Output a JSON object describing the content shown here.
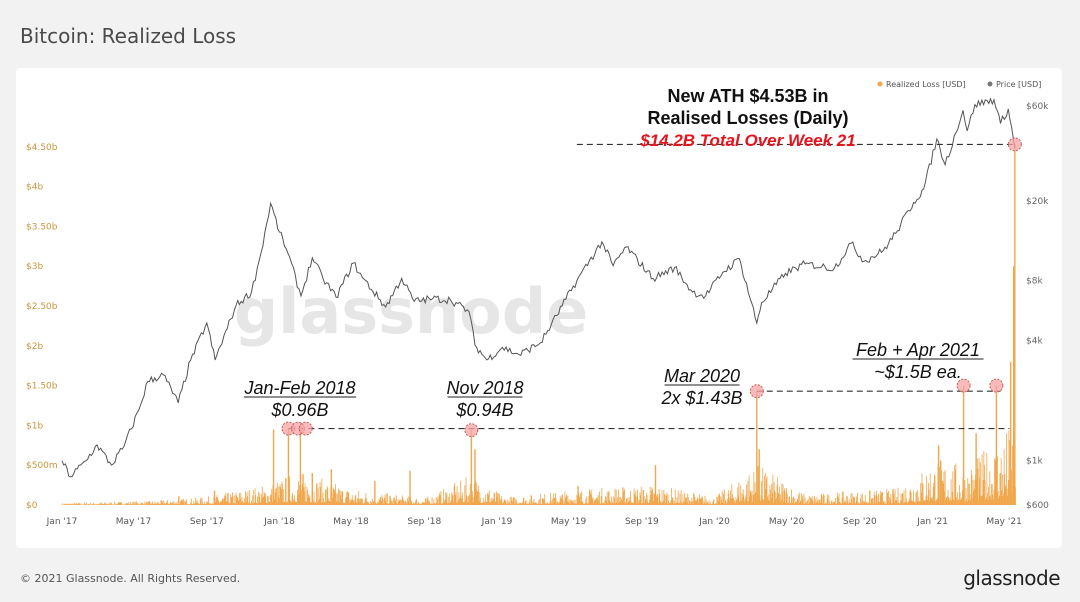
{
  "page": {
    "title": "Bitcoin: Realized Loss",
    "copyright": "© 2021 Glassnode. All Rights Reserved.",
    "brand": "glassnode",
    "watermark": "glassnode"
  },
  "colors": {
    "loss": "#f0a64a",
    "price": "#555555",
    "highlight": "#f5a3a3",
    "annotation_red": "#e8121c",
    "axis_text": "#c8963e",
    "axis_text_right": "#666666"
  },
  "chart_data": {
    "type": "bar",
    "title": "Bitcoin: Realized Loss",
    "legend": [
      {
        "name": "Realized Loss [USD]",
        "color": "#f0a64a"
      },
      {
        "name": "Price [USD]",
        "color": "#777777"
      }
    ],
    "legend_position": "top-right",
    "x_range": [
      "2017-01-01",
      "2021-05-31"
    ],
    "x_ticks": [
      "Jan '17",
      "May '17",
      "Sep '17",
      "Jan '18",
      "May '18",
      "Sep '18",
      "Jan '19",
      "May '19",
      "Sep '19",
      "Jan '20",
      "May '20",
      "Sep '20",
      "Jan '21",
      "May '21"
    ],
    "y_left": {
      "range": [
        0,
        5000000000
      ],
      "ticks": [
        0,
        500000000,
        1000000000,
        1500000000,
        2000000000,
        2500000000,
        3000000000,
        3500000000,
        4000000000,
        4500000000
      ],
      "tick_labels": [
        "$0",
        "$500m",
        "$1b",
        "$1.50b",
        "$2b",
        "$2.50b",
        "$3b",
        "$3.50b",
        "$4b",
        "$4.50b"
      ]
    },
    "y_right": {
      "scale": "log",
      "range": [
        600,
        60000
      ],
      "ticks": [
        600,
        1000,
        4000,
        8000,
        20000,
        60000
      ],
      "tick_labels": [
        "$600",
        "$1k",
        "$4k",
        "$8k",
        "$20k",
        "$60k"
      ]
    },
    "price": {
      "name": "Price [USD]",
      "points": [
        [
          "2017-01-01",
          1000
        ],
        [
          "2017-01-15",
          830
        ],
        [
          "2017-02-10",
          1000
        ],
        [
          "2017-03-01",
          1200
        ],
        [
          "2017-03-25",
          950
        ],
        [
          "2017-04-15",
          1180
        ],
        [
          "2017-05-10",
          1800
        ],
        [
          "2017-05-25",
          2500
        ],
        [
          "2017-06-20",
          2700
        ],
        [
          "2017-07-15",
          1950
        ],
        [
          "2017-08-05",
          3200
        ],
        [
          "2017-09-01",
          4900
        ],
        [
          "2017-09-15",
          3200
        ],
        [
          "2017-10-20",
          6000
        ],
        [
          "2017-11-15",
          7000
        ],
        [
          "2017-12-01",
          11000
        ],
        [
          "2017-12-17",
          19500
        ],
        [
          "2018-01-01",
          14000
        ],
        [
          "2018-01-15",
          11000
        ],
        [
          "2018-02-06",
          6700
        ],
        [
          "2018-02-25",
          10400
        ],
        [
          "2018-03-15",
          8200
        ],
        [
          "2018-04-06",
          6600
        ],
        [
          "2018-05-05",
          9800
        ],
        [
          "2018-05-20",
          8300
        ],
        [
          "2018-06-28",
          5900
        ],
        [
          "2018-07-25",
          8200
        ],
        [
          "2018-08-15",
          6300
        ],
        [
          "2018-09-15",
          6500
        ],
        [
          "2018-10-15",
          6400
        ],
        [
          "2018-11-15",
          5600
        ],
        [
          "2018-11-25",
          3800
        ],
        [
          "2018-12-15",
          3200
        ],
        [
          "2019-01-10",
          3700
        ],
        [
          "2019-02-07",
          3400
        ],
        [
          "2019-03-15",
          3900
        ],
        [
          "2019-04-02",
          4800
        ],
        [
          "2019-05-15",
          8000
        ],
        [
          "2019-06-26",
          12500
        ],
        [
          "2019-07-15",
          9500
        ],
        [
          "2019-08-06",
          11800
        ],
        [
          "2019-09-20",
          8200
        ],
        [
          "2019-10-26",
          9300
        ],
        [
          "2019-11-25",
          7000
        ],
        [
          "2019-12-17",
          6700
        ],
        [
          "2020-01-15",
          8800
        ],
        [
          "2020-02-12",
          10300
        ],
        [
          "2020-03-12",
          4900
        ],
        [
          "2020-03-20",
          6200
        ],
        [
          "2020-04-29",
          8700
        ],
        [
          "2020-06-01",
          9700
        ],
        [
          "2020-07-20",
          9200
        ],
        [
          "2020-08-17",
          12300
        ],
        [
          "2020-09-08",
          10000
        ],
        [
          "2020-10-10",
          11300
        ],
        [
          "2020-10-31",
          13800
        ],
        [
          "2020-11-30",
          19700
        ],
        [
          "2020-12-17",
          23000
        ],
        [
          "2021-01-08",
          41000
        ],
        [
          "2021-01-22",
          30500
        ],
        [
          "2021-02-21",
          57000
        ],
        [
          "2021-02-28",
          45000
        ],
        [
          "2021-03-13",
          61000
        ],
        [
          "2021-04-14",
          64500
        ],
        [
          "2021-04-25",
          49000
        ],
        [
          "2021-05-08",
          58000
        ],
        [
          "2021-05-19",
          37000
        ]
      ]
    },
    "realized_loss": {
      "name": "Realized Loss [USD]",
      "baseline": [
        [
          "2017-01-01",
          15000000
        ],
        [
          "2017-06-01",
          30000000
        ],
        [
          "2017-09-01",
          60000000
        ],
        [
          "2017-12-10",
          150000000
        ],
        [
          "2018-02-01",
          250000000
        ],
        [
          "2018-05-01",
          120000000
        ],
        [
          "2018-09-01",
          50000000
        ],
        [
          "2018-11-20",
          220000000
        ],
        [
          "2019-01-15",
          60000000
        ],
        [
          "2019-06-01",
          120000000
        ],
        [
          "2019-09-24",
          150000000
        ],
        [
          "2020-01-01",
          60000000
        ],
        [
          "2020-03-12",
          300000000
        ],
        [
          "2020-06-01",
          80000000
        ],
        [
          "2020-11-01",
          120000000
        ],
        [
          "2021-01-10",
          350000000
        ],
        [
          "2021-03-01",
          280000000
        ],
        [
          "2021-05-15",
          600000000
        ]
      ],
      "spikes": [
        [
          "2017-07-16",
          110000000
        ],
        [
          "2017-09-14",
          180000000
        ],
        [
          "2017-12-22",
          950000000
        ],
        [
          "2018-01-16",
          960000000
        ],
        [
          "2018-02-05",
          960000000
        ],
        [
          "2018-02-25",
          400000000
        ],
        [
          "2018-03-29",
          450000000
        ],
        [
          "2018-06-10",
          300000000
        ],
        [
          "2018-08-08",
          430000000
        ],
        [
          "2018-11-19",
          940000000
        ],
        [
          "2018-11-25",
          700000000
        ],
        [
          "2019-05-17",
          240000000
        ],
        [
          "2019-09-24",
          500000000
        ],
        [
          "2020-03-12",
          1430000000
        ],
        [
          "2020-03-16",
          700000000
        ],
        [
          "2021-01-11",
          750000000
        ],
        [
          "2021-02-22",
          1500000000
        ],
        [
          "2021-03-15",
          900000000
        ],
        [
          "2021-04-18",
          1500000000
        ],
        [
          "2021-05-12",
          1800000000
        ],
        [
          "2021-05-17",
          3000000000
        ],
        [
          "2021-05-19",
          4530000000
        ]
      ]
    },
    "highlights": [
      {
        "date": "2018-01-16",
        "value": 960000000
      },
      {
        "date": "2018-02-01",
        "value": 960000000
      },
      {
        "date": "2018-02-14",
        "value": 960000000
      },
      {
        "date": "2018-11-19",
        "value": 940000000
      },
      {
        "date": "2020-03-12",
        "value": 1430000000
      },
      {
        "date": "2021-02-22",
        "value": 1500000000
      },
      {
        "date": "2021-04-18",
        "value": 1500000000
      },
      {
        "date": "2021-05-19",
        "value": 4530000000
      }
    ],
    "reference_lines": [
      {
        "from": "2018-01-16",
        "to": "2021-05-10",
        "value": 960000000
      },
      {
        "from": "2020-03-12",
        "to": "2021-04-25",
        "value": 1430000000
      },
      {
        "from": "2019-05-15",
        "to": "2021-05-19",
        "value": 4530000000
      }
    ],
    "annotations": [
      {
        "lines": [
          "New ATH $4.53B in",
          "Realised Losses (Daily)"
        ],
        "style": "bold"
      },
      {
        "lines": [
          "$14.2B Total Over Week 21"
        ],
        "style": "red"
      },
      {
        "lines": [
          "Jan-Feb 2018",
          "$0.96B"
        ],
        "style": "italic"
      },
      {
        "lines": [
          "Nov 2018",
          "$0.94B"
        ],
        "style": "italic"
      },
      {
        "lines": [
          "Mar 2020",
          "2x $1.43B"
        ],
        "style": "italic"
      },
      {
        "lines": [
          "Feb + Apr 2021",
          "~$1.5B ea."
        ],
        "style": "italic"
      }
    ]
  }
}
